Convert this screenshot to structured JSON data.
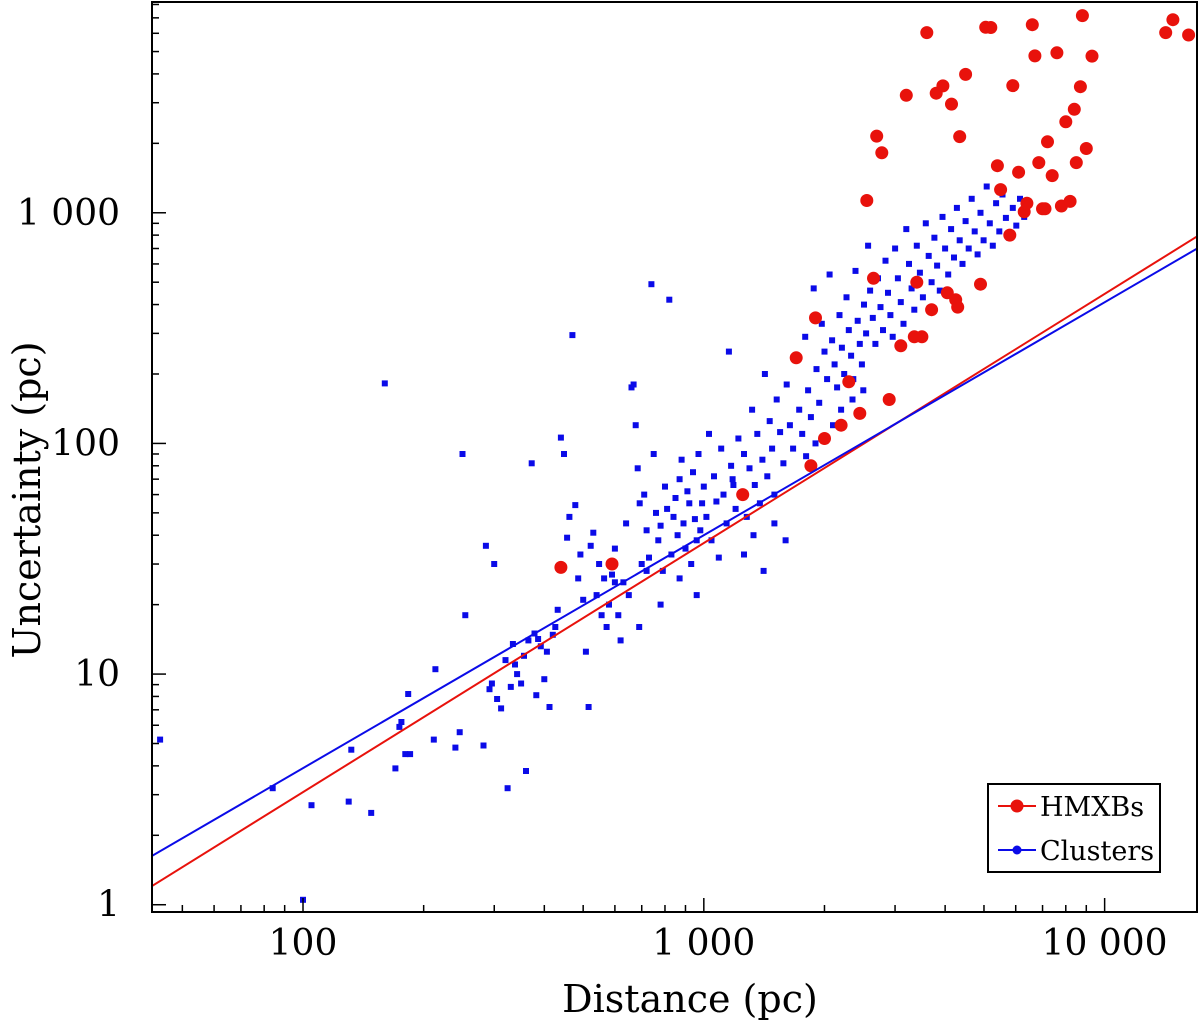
{
  "chart_data": {
    "type": "scatter",
    "title": "",
    "xlabel": "Distance (pc)",
    "ylabel": "Uncertainty (pc)",
    "xscale": "log",
    "yscale": "log",
    "xlim": [
      42,
      17000
    ],
    "ylim": [
      0.93,
      8200
    ],
    "x_ticks": [
      {
        "value": 100,
        "label": "100"
      },
      {
        "value": 1000,
        "label": "1 000"
      },
      {
        "value": 10000,
        "label": "10 000"
      }
    ],
    "y_ticks": [
      {
        "value": 1,
        "label": "1"
      },
      {
        "value": 10,
        "label": "10"
      },
      {
        "value": 100,
        "label": "100"
      },
      {
        "value": 1000,
        "label": "1 000"
      }
    ],
    "legend": {
      "position": "bottom-right",
      "entries": [
        {
          "label": "HMXBs",
          "color": "#e8120c"
        },
        {
          "label": "Clusters",
          "color": "#0b0be8"
        }
      ]
    },
    "series": [
      {
        "name": "Clusters",
        "color": "#0b0be8",
        "marker": "square",
        "fit_line": {
          "slope": 1.01,
          "intercept_at_1000": 40
        },
        "points": [
          [
            44,
            5.2
          ],
          [
            84,
            3.2
          ],
          [
            100,
            1.05
          ],
          [
            105,
            2.7
          ],
          [
            130,
            2.8
          ],
          [
            132,
            4.7
          ],
          [
            148,
            2.5
          ],
          [
            160,
            182
          ],
          [
            170,
            3.9
          ],
          [
            174,
            5.9
          ],
          [
            176,
            6.2
          ],
          [
            180,
            4.5
          ],
          [
            183,
            8.2
          ],
          [
            185,
            4.5
          ],
          [
            212,
            5.2
          ],
          [
            214,
            10.5
          ],
          [
            240,
            4.8
          ],
          [
            246,
            5.6
          ],
          [
            250,
            90
          ],
          [
            254,
            18
          ],
          [
            282,
            4.9
          ],
          [
            286,
            36
          ],
          [
            292,
            8.6
          ],
          [
            296,
            9.1
          ],
          [
            300,
            30
          ],
          [
            305,
            7.8
          ],
          [
            312,
            7.1
          ],
          [
            320,
            11.5
          ],
          [
            324,
            3.2
          ],
          [
            330,
            8.8
          ],
          [
            334,
            13.5
          ],
          [
            338,
            11
          ],
          [
            342,
            10
          ],
          [
            350,
            9.1
          ],
          [
            356,
            12
          ],
          [
            360,
            3.8
          ],
          [
            365,
            14
          ],
          [
            372,
            82
          ],
          [
            378,
            15
          ],
          [
            382,
            8.1
          ],
          [
            386,
            14.2
          ],
          [
            392,
            13.2
          ],
          [
            400,
            9.5
          ],
          [
            406,
            12.5
          ],
          [
            412,
            7.2
          ],
          [
            420,
            14.8
          ],
          [
            426,
            16
          ],
          [
            432,
            19
          ],
          [
            440,
            106
          ],
          [
            448,
            90
          ],
          [
            456,
            39
          ],
          [
            462,
            48
          ],
          [
            470,
            295
          ],
          [
            478,
            54
          ],
          [
            486,
            26
          ],
          [
            492,
            33
          ],
          [
            500,
            21
          ],
          [
            508,
            12.5
          ],
          [
            516,
            7.2
          ],
          [
            522,
            36
          ],
          [
            530,
            41
          ],
          [
            540,
            22
          ],
          [
            548,
            30
          ],
          [
            556,
            18
          ],
          [
            564,
            26
          ],
          [
            572,
            16
          ],
          [
            580,
            20
          ],
          [
            590,
            27
          ],
          [
            600,
            35
          ],
          [
            612,
            18
          ],
          [
            620,
            14
          ],
          [
            630,
            25
          ],
          [
            640,
            45
          ],
          [
            650,
            22
          ],
          [
            660,
            175
          ],
          [
            668,
            180
          ],
          [
            676,
            120
          ],
          [
            684,
            78
          ],
          [
            692,
            55
          ],
          [
            700,
            30
          ],
          [
            710,
            60
          ],
          [
            720,
            42
          ],
          [
            730,
            32
          ],
          [
            740,
            490
          ],
          [
            750,
            90
          ],
          [
            760,
            50
          ],
          [
            770,
            38
          ],
          [
            780,
            44
          ],
          [
            790,
            28
          ],
          [
            800,
            65
          ],
          [
            810,
            52
          ],
          [
            820,
            420
          ],
          [
            830,
            33
          ],
          [
            840,
            48
          ],
          [
            850,
            58
          ],
          [
            860,
            40
          ],
          [
            870,
            70
          ],
          [
            880,
            85
          ],
          [
            890,
            45
          ],
          [
            900,
            35
          ],
          [
            910,
            62
          ],
          [
            920,
            55
          ],
          [
            930,
            30
          ],
          [
            940,
            75
          ],
          [
            950,
            47
          ],
          [
            960,
            38
          ],
          [
            970,
            90
          ],
          [
            980,
            42
          ],
          [
            990,
            55
          ],
          [
            1000,
            65
          ],
          [
            1015,
            48
          ],
          [
            1030,
            110
          ],
          [
            1045,
            38
          ],
          [
            1060,
            72
          ],
          [
            1075,
            56
          ],
          [
            1090,
            32
          ],
          [
            1105,
            95
          ],
          [
            1120,
            60
          ],
          [
            1140,
            45
          ],
          [
            1155,
            250
          ],
          [
            1170,
            80
          ],
          [
            1185,
            66
          ],
          [
            1200,
            52
          ],
          [
            1220,
            105
          ],
          [
            1240,
            60
          ],
          [
            1260,
            90
          ],
          [
            1280,
            48
          ],
          [
            1300,
            78
          ],
          [
            1320,
            140
          ],
          [
            1340,
            66
          ],
          [
            1360,
            110
          ],
          [
            1380,
            55
          ],
          [
            1400,
            85
          ],
          [
            1420,
            200
          ],
          [
            1440,
            72
          ],
          [
            1460,
            125
          ],
          [
            1480,
            95
          ],
          [
            1500,
            60
          ],
          [
            1520,
            155
          ],
          [
            1550,
            112
          ],
          [
            1580,
            82
          ],
          [
            1610,
            180
          ],
          [
            1640,
            120
          ],
          [
            1670,
            95
          ],
          [
            1700,
            230
          ],
          [
            1730,
            140
          ],
          [
            1760,
            110
          ],
          [
            1790,
            290
          ],
          [
            1820,
            170
          ],
          [
            1850,
            130
          ],
          [
            1880,
            470
          ],
          [
            1910,
            210
          ],
          [
            1940,
            150
          ],
          [
            1970,
            330
          ],
          [
            2000,
            250
          ],
          [
            2030,
            190
          ],
          [
            2060,
            540
          ],
          [
            2090,
            280
          ],
          [
            2120,
            220
          ],
          [
            2150,
            175
          ],
          [
            2180,
            360
          ],
          [
            2210,
            260
          ],
          [
            2240,
            200
          ],
          [
            2270,
            430
          ],
          [
            2300,
            310
          ],
          [
            2330,
            240
          ],
          [
            2360,
            190
          ],
          [
            2390,
            560
          ],
          [
            2420,
            340
          ],
          [
            2450,
            270
          ],
          [
            2480,
            220
          ],
          [
            2510,
            400
          ],
          [
            2540,
            300
          ],
          [
            2570,
            720
          ],
          [
            2600,
            460
          ],
          [
            2640,
            350
          ],
          [
            2680,
            270
          ],
          [
            2720,
            520
          ],
          [
            2760,
            390
          ],
          [
            2800,
            310
          ],
          [
            2840,
            620
          ],
          [
            2880,
            450
          ],
          [
            2920,
            360
          ],
          [
            2960,
            290
          ],
          [
            3000,
            700
          ],
          [
            3050,
            520
          ],
          [
            3100,
            410
          ],
          [
            3150,
            330
          ],
          [
            3200,
            850
          ],
          [
            3250,
            600
          ],
          [
            3300,
            470
          ],
          [
            3350,
            380
          ],
          [
            3400,
            720
          ],
          [
            3460,
            550
          ],
          [
            3520,
            430
          ],
          [
            3580,
            900
          ],
          [
            3640,
            650
          ],
          [
            3700,
            500
          ],
          [
            3760,
            780
          ],
          [
            3820,
            590
          ],
          [
            3880,
            460
          ],
          [
            3940,
            960
          ],
          [
            4000,
            700
          ],
          [
            4070,
            540
          ],
          [
            4140,
            850
          ],
          [
            4210,
            640
          ],
          [
            4280,
            1050
          ],
          [
            4350,
            760
          ],
          [
            4420,
            600
          ],
          [
            4500,
            920
          ],
          [
            4580,
            700
          ],
          [
            4660,
            1150
          ],
          [
            4740,
            830
          ],
          [
            4820,
            660
          ],
          [
            4900,
            1000
          ],
          [
            4990,
            760
          ],
          [
            5080,
            1300
          ],
          [
            5170,
            900
          ],
          [
            5260,
            720
          ],
          [
            5360,
            1100
          ],
          [
            5460,
            830
          ],
          [
            5560,
            1200
          ],
          [
            5670,
            950
          ],
          [
            5780,
            780
          ],
          [
            5900,
            1050
          ],
          [
            6020,
            880
          ],
          [
            6150,
            1150
          ],
          [
            6300,
            960
          ],
          [
            1260,
            33
          ],
          [
            1330,
            40
          ],
          [
            1410,
            28
          ],
          [
            1500,
            45
          ],
          [
            1600,
            38
          ],
          [
            1180,
            70
          ],
          [
            960,
            22
          ],
          [
            870,
            26
          ],
          [
            780,
            20
          ],
          [
            690,
            16
          ],
          [
            600,
            25
          ],
          [
            720,
            28
          ],
          [
            2100,
            120
          ],
          [
            2200,
            140
          ],
          [
            2350,
            155
          ],
          [
            2500,
            170
          ],
          [
            1900,
            100
          ],
          [
            1800,
            88
          ]
        ]
      },
      {
        "name": "HMXBs",
        "color": "#e8120c",
        "marker": "circle",
        "fit_line": {
          "slope": 1.08,
          "intercept_at_1000": 37
        },
        "points": [
          [
            440,
            29
          ],
          [
            590,
            30
          ],
          [
            1250,
            60
          ],
          [
            1700,
            235
          ],
          [
            1850,
            80
          ],
          [
            1900,
            350
          ],
          [
            2000,
            105
          ],
          [
            2200,
            120
          ],
          [
            2300,
            185
          ],
          [
            2450,
            135
          ],
          [
            2550,
            1130
          ],
          [
            2650,
            520
          ],
          [
            2700,
            2150
          ],
          [
            2780,
            1820
          ],
          [
            2900,
            155
          ],
          [
            3100,
            265
          ],
          [
            3200,
            3230
          ],
          [
            3400,
            500
          ],
          [
            3500,
            290
          ],
          [
            3600,
            6040
          ],
          [
            3700,
            380
          ],
          [
            3800,
            3300
          ],
          [
            3950,
            3550
          ],
          [
            4050,
            450
          ],
          [
            4150,
            2960
          ],
          [
            4300,
            390
          ],
          [
            4350,
            2140
          ],
          [
            4500,
            3980
          ],
          [
            4900,
            490
          ],
          [
            5050,
            6370
          ],
          [
            5200,
            6360
          ],
          [
            5400,
            1600
          ],
          [
            5500,
            1260
          ],
          [
            5800,
            800
          ],
          [
            5900,
            3560
          ],
          [
            6100,
            1500
          ],
          [
            6300,
            1010
          ],
          [
            6600,
            6540
          ],
          [
            6700,
            4790
          ],
          [
            7000,
            1040
          ],
          [
            7200,
            2030
          ],
          [
            7400,
            1450
          ],
          [
            7600,
            4940
          ],
          [
            7800,
            1070
          ],
          [
            8000,
            2480
          ],
          [
            8200,
            1120
          ],
          [
            8400,
            2810
          ],
          [
            8500,
            1650
          ],
          [
            8700,
            3520
          ],
          [
            8800,
            7160
          ],
          [
            9000,
            1900
          ],
          [
            9300,
            4780
          ],
          [
            14200,
            6040
          ],
          [
            14800,
            6870
          ],
          [
            16200,
            5900
          ],
          [
            6400,
            1100
          ],
          [
            6850,
            1650
          ],
          [
            7100,
            1040
          ],
          [
            4250,
            420
          ],
          [
            3350,
            290
          ]
        ]
      }
    ]
  }
}
